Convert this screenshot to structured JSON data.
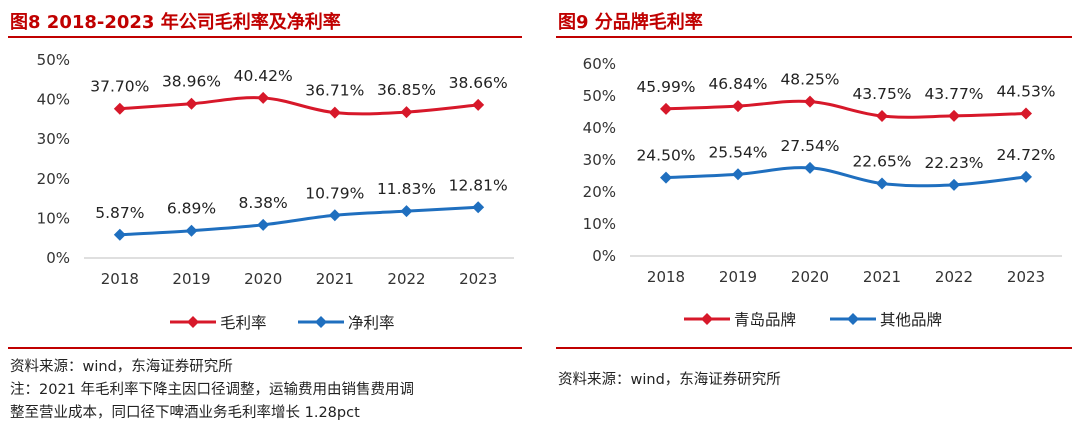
{
  "chart_data": [
    {
      "type": "line",
      "title": "图8  2018-2023 年公司毛利率及净利率",
      "categories": [
        "2018",
        "2019",
        "2020",
        "2021",
        "2022",
        "2023"
      ],
      "ylim": [
        0,
        50
      ],
      "yticks": [
        "0%",
        "10%",
        "20%",
        "30%",
        "40%",
        "50%"
      ],
      "ytick_values": [
        0,
        10,
        20,
        30,
        40,
        50
      ],
      "series": [
        {
          "name": "毛利率",
          "color": "#d7182a",
          "values": [
            37.7,
            38.96,
            40.42,
            36.71,
            36.85,
            38.66
          ],
          "labels": [
            "37.70%",
            "38.96%",
            "40.42%",
            "36.71%",
            "36.85%",
            "38.66%"
          ]
        },
        {
          "name": "净利率",
          "color": "#1f6fbf",
          "values": [
            5.87,
            6.89,
            8.38,
            10.79,
            11.83,
            12.81
          ],
          "labels": [
            "5.87%",
            "6.89%",
            "8.38%",
            "10.79%",
            "11.83%",
            "12.81%"
          ]
        }
      ],
      "legend": "bottom",
      "notes": [
        "资料来源：wind，东海证券研究所",
        "注：2021 年毛利率下降主因口径调整，运输费用由销售费用调",
        "整至营业成本，同口径下啤酒业务毛利率增长 1.28pct"
      ]
    },
    {
      "type": "line",
      "title": "图9  分品牌毛利率",
      "categories": [
        "2018",
        "2019",
        "2020",
        "2021",
        "2022",
        "2023"
      ],
      "ylim": [
        0,
        60
      ],
      "yticks": [
        "0%",
        "10%",
        "20%",
        "30%",
        "40%",
        "50%",
        "60%"
      ],
      "ytick_values": [
        0,
        10,
        20,
        30,
        40,
        50,
        60
      ],
      "series": [
        {
          "name": "青岛品牌",
          "color": "#d7182a",
          "values": [
            45.99,
            46.84,
            48.25,
            43.75,
            43.77,
            44.53
          ],
          "labels": [
            "45.99%",
            "46.84%",
            "48.25%",
            "43.75%",
            "43.77%",
            "44.53%"
          ]
        },
        {
          "name": "其他品牌",
          "color": "#1f6fbf",
          "values": [
            24.5,
            25.54,
            27.54,
            22.65,
            22.23,
            24.72
          ],
          "labels": [
            "24.50%",
            "25.54%",
            "27.54%",
            "22.65%",
            "22.23%",
            "24.72%"
          ]
        }
      ],
      "legend": "bottom",
      "notes": [
        "资料来源：wind，东海证券研究所"
      ]
    }
  ]
}
